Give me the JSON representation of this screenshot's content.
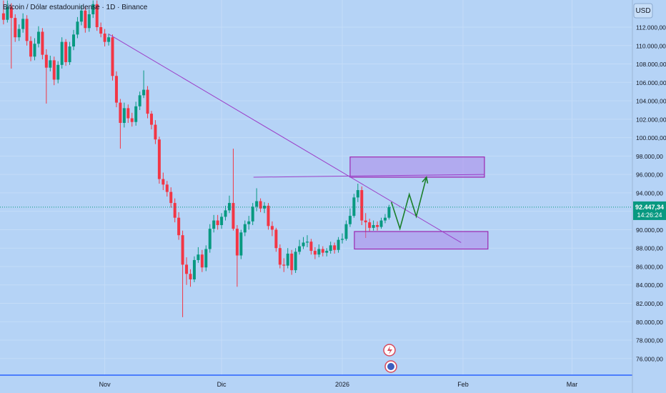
{
  "chart_data": {
    "type": "candlestick",
    "title": "Bitcoin / Dólar estadounidense · 1D · Binance",
    "currency": "USD",
    "open": [
      113500,
      112800,
      114200,
      113000,
      110900,
      111800,
      112900,
      110500,
      108800,
      110200,
      111500,
      109000,
      107600,
      108400,
      106300,
      107900,
      110400,
      108200,
      109900,
      111200,
      112600,
      113800,
      111900,
      113400,
      114500,
      112000,
      111300,
      110400,
      110900,
      106700,
      103800,
      101600,
      103200,
      102100,
      101700,
      103400,
      104600,
      105200,
      102600,
      101400,
      99800,
      95500,
      94900,
      94100,
      92900,
      91300,
      89400,
      86200,
      85200,
      84600,
      86700,
      87300,
      85900,
      87900,
      90100,
      91000,
      90500,
      91400,
      92100,
      92900,
      90100,
      87200,
      89700,
      90600,
      90900,
      92500,
      93100,
      92300,
      92600,
      90400,
      90000,
      88000,
      86200,
      86100,
      87400,
      85600,
      87600,
      88200,
      88600,
      88700,
      87700,
      87300,
      87900,
      87500,
      87700,
      88300,
      87800,
      88900,
      89000,
      90600,
      91500,
      93500,
      94300,
      91000,
      90800,
      90200,
      90500,
      90300,
      91000,
      91300
    ],
    "high": [
      114900,
      114900,
      114600,
      113400,
      112300,
      113500,
      113300,
      111000,
      110800,
      112100,
      111900,
      109600,
      108900,
      108800,
      108300,
      110900,
      110700,
      110400,
      111700,
      113100,
      114400,
      114200,
      113900,
      114900,
      114900,
      112500,
      111800,
      111300,
      111200,
      107200,
      104200,
      103800,
      103600,
      102700,
      103900,
      105000,
      107300,
      105600,
      102900,
      101900,
      100100,
      96200,
      95300,
      94600,
      93400,
      91900,
      89900,
      87000,
      85700,
      87100,
      88100,
      87800,
      88300,
      90600,
      91600,
      91600,
      91800,
      92600,
      93700,
      98800,
      90500,
      90000,
      91000,
      91500,
      92900,
      94500,
      93400,
      93000,
      92900,
      90900,
      90200,
      88400,
      86900,
      88000,
      87800,
      88000,
      88900,
      89200,
      89400,
      89000,
      88100,
      88400,
      88200,
      88000,
      88700,
      88600,
      89200,
      89600,
      91000,
      92300,
      93900,
      95000,
      94700,
      91800,
      91200,
      91000,
      90900,
      91300,
      91700,
      92700
    ],
    "low": [
      112300,
      112500,
      107500,
      110400,
      110500,
      111400,
      110000,
      108300,
      108400,
      109800,
      108500,
      103700,
      107200,
      105700,
      105900,
      107500,
      107800,
      107900,
      109500,
      110800,
      112200,
      111400,
      111500,
      113000,
      111600,
      110900,
      109900,
      110000,
      106200,
      103300,
      98800,
      101100,
      101600,
      101200,
      101300,
      103000,
      104300,
      102100,
      100900,
      99300,
      95000,
      94300,
      93600,
      92400,
      90800,
      88900,
      80500,
      84000,
      83800,
      84300,
      86400,
      85400,
      85500,
      87500,
      89700,
      90000,
      90100,
      91000,
      91800,
      89900,
      83800,
      86800,
      89300,
      90000,
      90500,
      92000,
      91900,
      91800,
      90000,
      89300,
      87600,
      85800,
      85400,
      85800,
      85100,
      85300,
      87300,
      87900,
      88100,
      87300,
      86800,
      87000,
      87100,
      87100,
      87400,
      87400,
      87500,
      88500,
      88800,
      90300,
      91300,
      93000,
      90500,
      89100,
      89800,
      89900,
      89900,
      90100,
      90700,
      91100
    ],
    "close": [
      112800,
      114200,
      113000,
      110900,
      111800,
      112900,
      110500,
      108800,
      110200,
      111500,
      109000,
      107600,
      108400,
      106300,
      107900,
      110400,
      108200,
      109900,
      111200,
      112600,
      113800,
      111900,
      113400,
      114500,
      112000,
      111300,
      110400,
      110900,
      106700,
      103800,
      101600,
      103200,
      102100,
      101700,
      103400,
      104600,
      105200,
      102600,
      101400,
      99800,
      95500,
      94900,
      94100,
      92900,
      91300,
      89400,
      86200,
      85200,
      84600,
      86700,
      87300,
      85900,
      87900,
      90100,
      91000,
      90500,
      91400,
      92100,
      92900,
      90100,
      87200,
      89700,
      90600,
      90900,
      92500,
      93100,
      92300,
      92600,
      90400,
      90000,
      88000,
      86200,
      86100,
      87400,
      85600,
      87600,
      88200,
      88600,
      88700,
      87700,
      87300,
      87900,
      87500,
      87700,
      88300,
      87800,
      88900,
      89000,
      90600,
      91500,
      93500,
      94300,
      91000,
      90800,
      90200,
      90500,
      90300,
      91000,
      91300,
      92447.34
    ],
    "up_color": "#089981",
    "down_color": "#f23645",
    "xlim": [
      -0.9,
      161.5
    ],
    "xticks": [
      {
        "value": 26,
        "label": "Nov"
      },
      {
        "value": 56,
        "label": "Dic"
      },
      {
        "value": 87,
        "label": "2026"
      },
      {
        "value": 118,
        "label": "Feb"
      },
      {
        "value": 146,
        "label": "Mar"
      }
    ],
    "ylim": [
      74200,
      114950
    ],
    "yticks": [
      {
        "value": 76000,
        "label": "76.000,00"
      },
      {
        "value": 78000,
        "label": "78.000,00"
      },
      {
        "value": 80000,
        "label": "80.000,00"
      },
      {
        "value": 82000,
        "label": "82.000,00"
      },
      {
        "value": 84000,
        "label": "84.000,00"
      },
      {
        "value": 86000,
        "label": "86.000,00"
      },
      {
        "value": 88000,
        "label": "88.000,00"
      },
      {
        "value": 90000,
        "label": "90.000,00"
      },
      {
        "value": 92000,
        "label": "92.000,00"
      },
      {
        "value": 94000,
        "label": "94.000,00"
      },
      {
        "value": 96000,
        "label": "96.000,00"
      },
      {
        "value": 98000,
        "label": "98.000,00"
      },
      {
        "value": 100000,
        "label": "100.000,00"
      },
      {
        "value": 102000,
        "label": "102.000,00"
      },
      {
        "value": 104000,
        "label": "104.000,00"
      },
      {
        "value": 106000,
        "label": "106.000,00"
      },
      {
        "value": 108000,
        "label": "108.000,00"
      },
      {
        "value": 110000,
        "label": "110.000,00"
      },
      {
        "value": 112000,
        "label": "112.000,00"
      }
    ],
    "grid": true,
    "last_price": {
      "value": 92447.34,
      "label": "92.447,34"
    },
    "countdown": "14:26:24",
    "trendline": {
      "x": [
        27,
        117.5
      ],
      "y": [
        111250,
        88600
      ],
      "color": "#9c40c9"
    },
    "hline": {
      "x": [
        64.2,
        123.5
      ],
      "y": [
        95700,
        96000
      ],
      "color": "#9c40c9"
    },
    "zones": [
      {
        "x": [
          89,
          123.5
        ],
        "y": [
          97900,
          95700
        ]
      },
      {
        "x": [
          90.1,
          124.4
        ],
        "y": [
          89800,
          87900
        ]
      }
    ],
    "projection": {
      "x": [
        99.6,
        101.8,
        104.2,
        106,
        108.6
      ],
      "y": [
        93000,
        90120,
        93840,
        91440,
        95710
      ],
      "color": "#1b7f2a"
    }
  }
}
